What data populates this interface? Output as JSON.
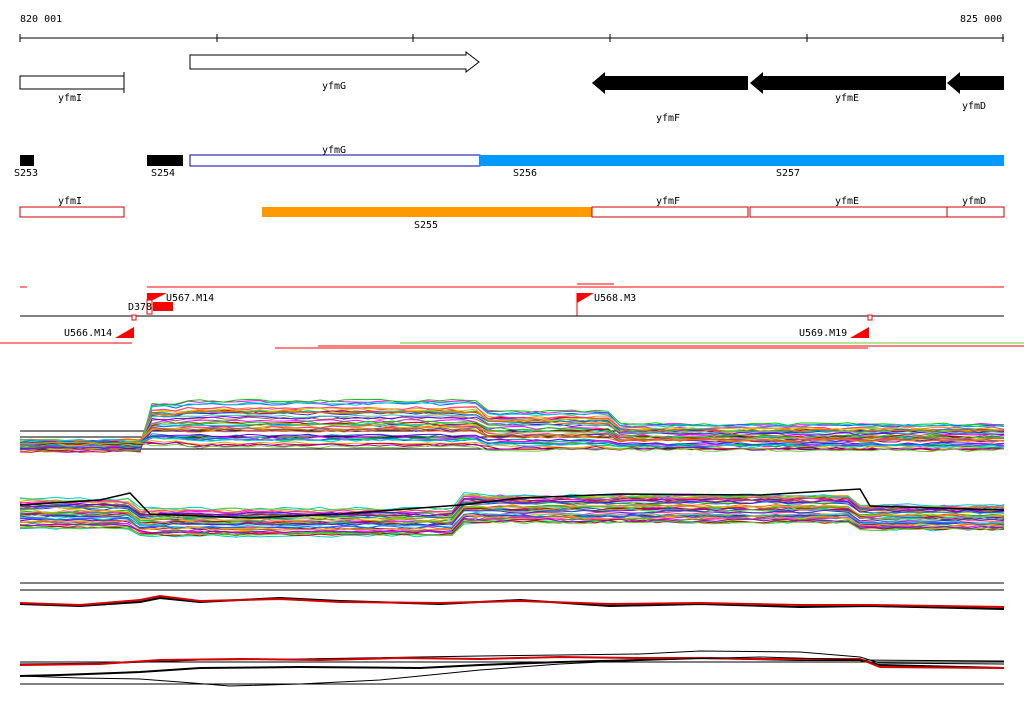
{
  "ruler": {
    "start_label": "820 001",
    "end_label": "825 000"
  },
  "genes_top": [
    {
      "name": "yfmI",
      "style": "open-box"
    },
    {
      "name": "yfmG",
      "style": "open-arrow-right"
    },
    {
      "name": "yfmF",
      "style": "filled-arrow-left"
    },
    {
      "name": "yfmE",
      "style": "filled-arrow-left"
    },
    {
      "name": "yfmD",
      "style": "filled-arrow-left"
    }
  ],
  "segments": [
    {
      "name": "S253",
      "color": "#000000"
    },
    {
      "name": "S254",
      "color": "#000000"
    },
    {
      "name": "S256",
      "color": "#0099ff"
    },
    {
      "name": "S257",
      "color": "#0099ff"
    }
  ],
  "segment_gene_label": "yfmG",
  "genes_row3": [
    {
      "name": "yfmI"
    },
    {
      "name": "yfmF"
    },
    {
      "name": "yfmE"
    },
    {
      "name": "yfmD"
    }
  ],
  "orange_segment": {
    "name": "S255",
    "color": "#ff9900"
  },
  "markers": [
    {
      "name": "U567.M14"
    },
    {
      "name": "U568.M3"
    },
    {
      "name": "D378"
    },
    {
      "name": "U566.M14"
    },
    {
      "name": "U569.M19"
    }
  ],
  "colors": {
    "ruler": "#000000",
    "gene_outline": "#000000",
    "gene_box_outline_red": "#cc0000",
    "marker": "#ff0000",
    "blue_outline": "#0000aa"
  }
}
